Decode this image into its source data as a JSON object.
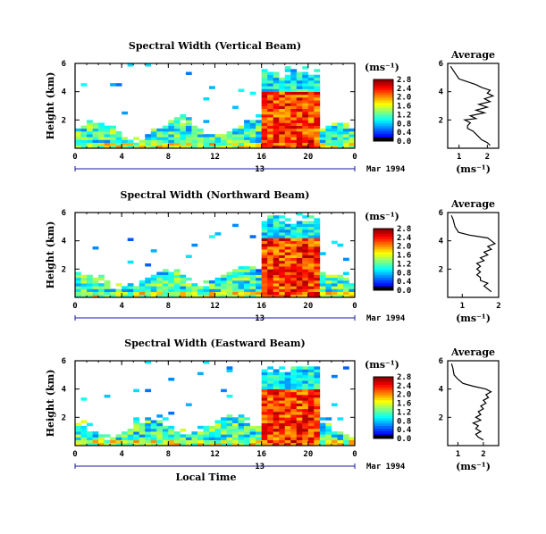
{
  "chart_data": [
    {
      "type": "heatmap",
      "title": "Spectral Width (Vertical Beam)",
      "ylabel": "Height (km)",
      "ylim": [
        0,
        6
      ],
      "xlim": [
        0,
        24
      ],
      "x_ticks": [
        "0",
        "4",
        "8",
        "12",
        "16",
        "20",
        "0"
      ],
      "y_ticks": [
        "2",
        "4",
        "6"
      ],
      "day_marker": "13",
      "date_label": "Mar 1994",
      "colorbar": {
        "unit": "(ms⁻¹)",
        "ticks": [
          "0.0",
          "0.4",
          "0.8",
          "1.2",
          "1.6",
          "2.0",
          "2.4",
          "2.8"
        ]
      },
      "field": {
        "rows": 30,
        "cols": 48,
        "storm_start_h": 16.0,
        "storm_end_h": 21.0,
        "storm_top_km": 4.0
      },
      "profile": {
        "title": "Average",
        "xlabel": "(ms⁻¹)",
        "x_ticks": [
          "1",
          "2"
        ],
        "xlim": [
          0.6,
          2.4
        ],
        "y_ticks": [
          "2",
          "4",
          "6"
        ],
        "ylim": [
          0,
          6
        ],
        "points": [
          [
            2.1,
            0.2
          ],
          [
            2.0,
            0.4
          ],
          [
            1.8,
            0.6
          ],
          [
            1.7,
            0.8
          ],
          [
            1.6,
            1.0
          ],
          [
            1.5,
            1.2
          ],
          [
            1.3,
            1.4
          ],
          [
            1.3,
            1.6
          ],
          [
            1.4,
            1.8
          ],
          [
            1.2,
            2.0
          ],
          [
            1.6,
            2.1
          ],
          [
            1.4,
            2.3
          ],
          [
            1.9,
            2.5
          ],
          [
            1.6,
            2.7
          ],
          [
            2.0,
            2.9
          ],
          [
            1.7,
            3.1
          ],
          [
            2.1,
            3.3
          ],
          [
            1.9,
            3.5
          ],
          [
            2.2,
            3.7
          ],
          [
            2.0,
            3.9
          ],
          [
            2.1,
            4.1
          ],
          [
            1.8,
            4.3
          ],
          [
            1.6,
            4.5
          ],
          [
            1.3,
            4.7
          ],
          [
            1.0,
            4.9
          ],
          [
            0.9,
            5.2
          ],
          [
            0.8,
            5.5
          ],
          [
            0.7,
            5.8
          ]
        ]
      }
    },
    {
      "type": "heatmap",
      "title": "Spectral Width (Northward Beam)",
      "ylabel": "Height (km)",
      "ylim": [
        0,
        6
      ],
      "xlim": [
        0,
        24
      ],
      "x_ticks": [
        "0",
        "4",
        "8",
        "12",
        "16",
        "20",
        "0"
      ],
      "y_ticks": [
        "2",
        "4",
        "6"
      ],
      "day_marker": "13",
      "date_label": "Mar 1994",
      "colorbar": {
        "unit": "(ms⁻¹)",
        "ticks": [
          "0.0",
          "0.4",
          "0.8",
          "1.2",
          "1.6",
          "2.0",
          "2.4",
          "2.8"
        ]
      },
      "field": {
        "rows": 30,
        "cols": 48,
        "storm_start_h": 15.8,
        "storm_end_h": 21.0,
        "storm_top_km": 4.2
      },
      "profile": {
        "title": "Average",
        "xlabel": "(ms⁻¹)",
        "x_ticks": [
          "1",
          "2"
        ],
        "xlim": [
          0.6,
          2.0
        ],
        "y_ticks": [
          "2",
          "4",
          "6"
        ],
        "ylim": [
          0,
          6
        ],
        "points": [
          [
            1.8,
            0.4
          ],
          [
            1.7,
            0.6
          ],
          [
            1.6,
            0.8
          ],
          [
            1.7,
            1.0
          ],
          [
            1.5,
            1.2
          ],
          [
            1.5,
            1.4
          ],
          [
            1.4,
            1.6
          ],
          [
            1.5,
            1.8
          ],
          [
            1.4,
            2.0
          ],
          [
            1.5,
            2.2
          ],
          [
            1.4,
            2.4
          ],
          [
            1.6,
            2.6
          ],
          [
            1.5,
            2.8
          ],
          [
            1.7,
            3.0
          ],
          [
            1.6,
            3.2
          ],
          [
            1.8,
            3.4
          ],
          [
            1.7,
            3.6
          ],
          [
            1.9,
            3.8
          ],
          [
            1.8,
            4.0
          ],
          [
            1.7,
            4.2
          ],
          [
            1.2,
            4.4
          ],
          [
            0.9,
            4.6
          ],
          [
            0.8,
            5.0
          ],
          [
            0.75,
            5.5
          ],
          [
            0.7,
            5.8
          ]
        ]
      }
    },
    {
      "type": "heatmap",
      "title": "Spectral Width (Eastward Beam)",
      "ylabel": "Height (km)",
      "xlabel": "Local Time",
      "ylim": [
        0,
        6
      ],
      "xlim": [
        0,
        24
      ],
      "x_ticks": [
        "0",
        "4",
        "8",
        "12",
        "16",
        "20",
        "0"
      ],
      "y_ticks": [
        "2",
        "4",
        "6"
      ],
      "day_marker": "13",
      "date_label": "Mar 1994",
      "colorbar": {
        "unit": "(ms⁻¹)",
        "ticks": [
          "0.0",
          "0.4",
          "0.8",
          "1.2",
          "1.6",
          "2.0",
          "2.4",
          "2.8"
        ]
      },
      "field": {
        "rows": 30,
        "cols": 48,
        "storm_start_h": 15.8,
        "storm_end_h": 21.0,
        "storm_top_km": 4.1
      },
      "profile": {
        "title": "Average",
        "xlabel": "(ms⁻¹)",
        "x_ticks": [
          "1",
          "2"
        ],
        "xlim": [
          0.6,
          2.6
        ],
        "y_ticks": [
          "2",
          "4",
          "6"
        ],
        "ylim": [
          0,
          6
        ],
        "points": [
          [
            2.0,
            0.4
          ],
          [
            1.8,
            0.6
          ],
          [
            1.7,
            0.8
          ],
          [
            1.9,
            1.0
          ],
          [
            1.7,
            1.2
          ],
          [
            1.8,
            1.4
          ],
          [
            1.6,
            1.6
          ],
          [
            1.9,
            1.8
          ],
          [
            1.7,
            2.0
          ],
          [
            1.9,
            2.2
          ],
          [
            1.8,
            2.4
          ],
          [
            2.0,
            2.6
          ],
          [
            1.9,
            2.8
          ],
          [
            2.1,
            3.0
          ],
          [
            2.0,
            3.2
          ],
          [
            2.2,
            3.4
          ],
          [
            2.1,
            3.6
          ],
          [
            2.3,
            3.8
          ],
          [
            2.1,
            4.0
          ],
          [
            1.6,
            4.2
          ],
          [
            1.2,
            4.4
          ],
          [
            1.0,
            4.7
          ],
          [
            0.85,
            5.0
          ],
          [
            0.8,
            5.5
          ],
          [
            0.75,
            5.8
          ]
        ]
      }
    }
  ]
}
